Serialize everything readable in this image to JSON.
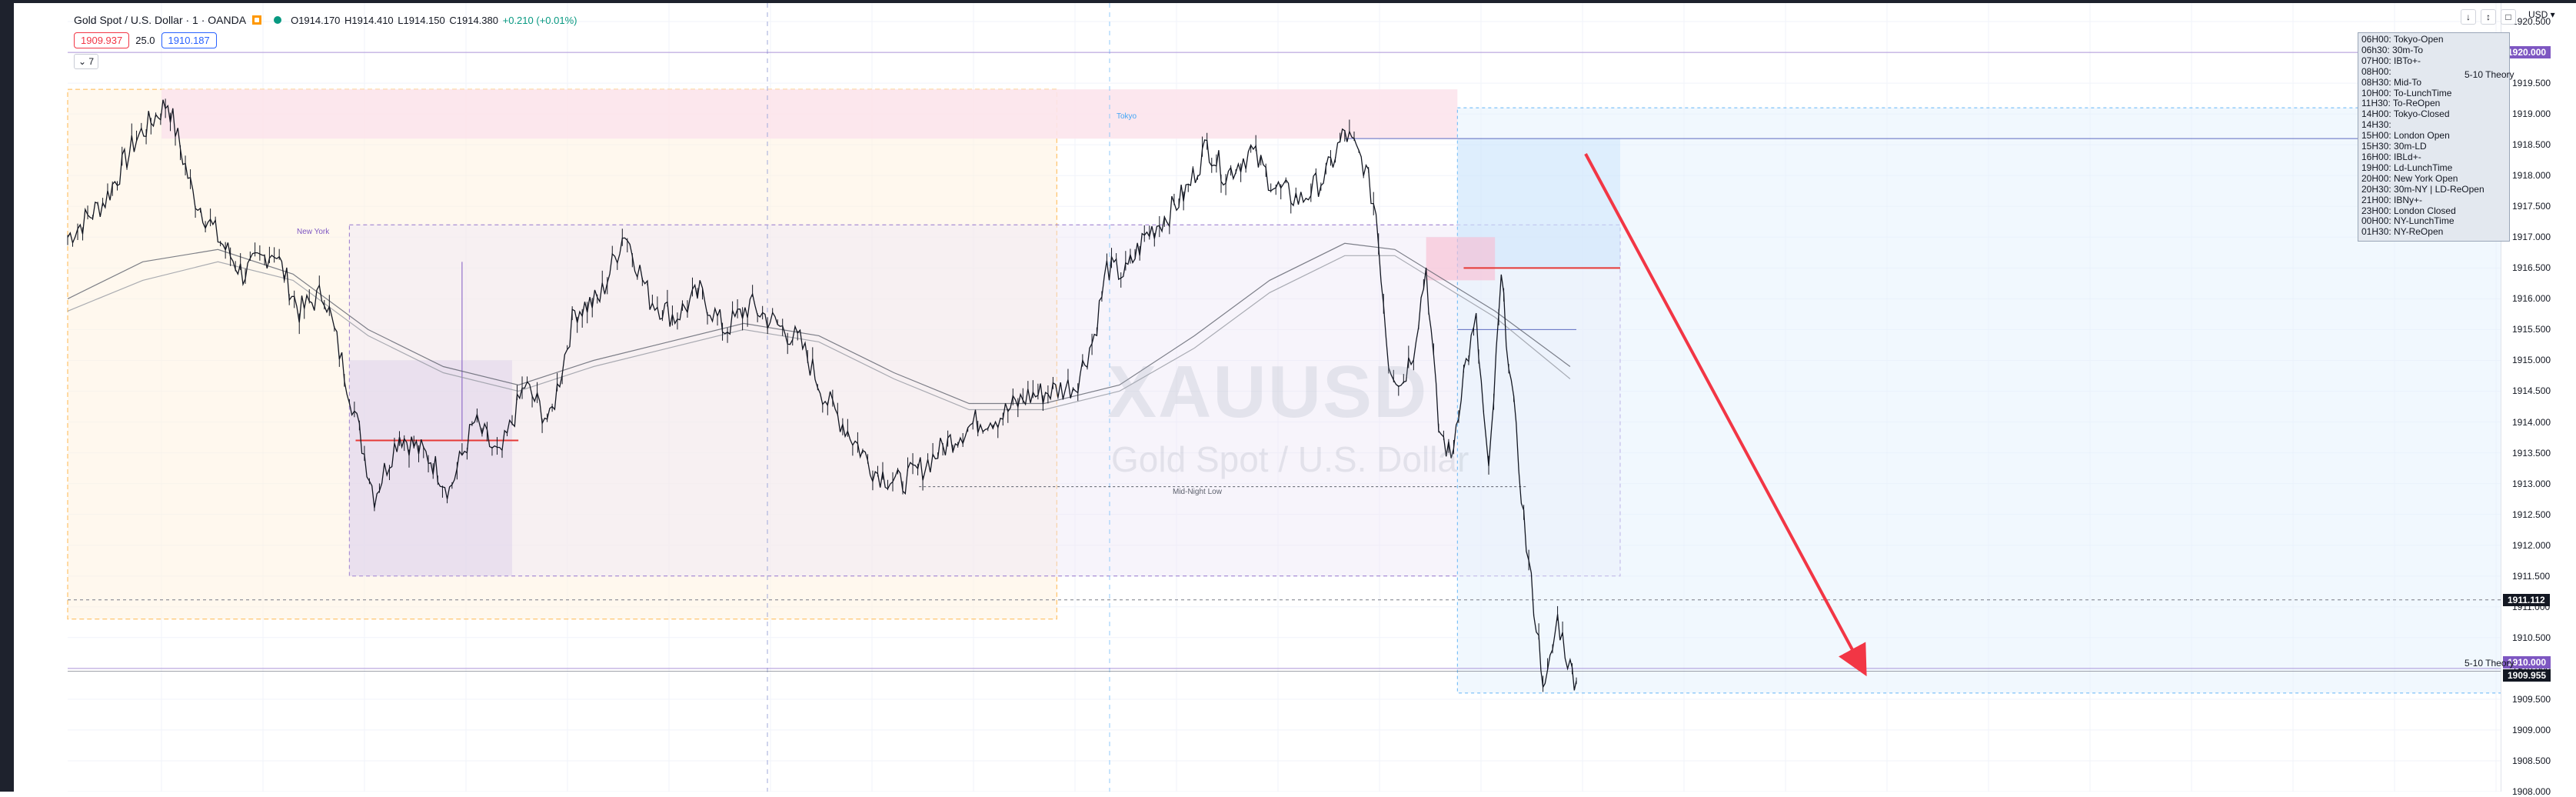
{
  "legend": {
    "symbol": "Gold Spot / U.S. Dollar · 1 · OANDA",
    "open": "O1914.170",
    "high": "H1914.410",
    "low": "L1914.150",
    "close": "C1914.380",
    "change": "+0.210 (+0.01%)"
  },
  "trade": {
    "sell": "1909.937",
    "spread": "25.0",
    "buy": "1910.187"
  },
  "collapse_label": "⌄ 7",
  "watermark": {
    "symbol": "XAUUSD",
    "description": "Gold Spot / U.S. Dollar"
  },
  "axis": {
    "currency": "USD ▾",
    "controls": [
      "↓",
      "↕",
      "□"
    ]
  },
  "session_schedule": "06H00: Tokyo-Open\n06h30: 30m-To\n07H00: IBTo+-\n08H00:\n08H30: Mid-To\n10H00: To-LunchTime\n11H30: To-ReOpen\n14H00: Tokyo-Closed\n14H30:\n15H00: London Open\n15H30: 30m-LD\n16H00: IBLd+-\n19H00: Ld-LunchTime\n20H00: New York Open\n20H30: 30m-NY | LD-ReOpen\n21H00: IBNy+-\n23H00: London Closed\n00H00: NY-LunchTime\n01H30: NY-ReOpen",
  "session_labels": {
    "new_york": "New York",
    "tokyo": "Tokyo",
    "mid_night_low": "Mid-Night Low"
  },
  "theory_label": "5-10 Theory",
  "markers": {
    "cursor_price": "1911.112",
    "theory_high": "1920.000",
    "theory_low": "1910.000",
    "last_price": "1909.955"
  },
  "colors": {
    "up": "#089981",
    "down": "#131722",
    "sell": "#f23645",
    "buy": "#2962ff",
    "theory": "#7e57c2",
    "arrow": "#f23645",
    "tokyo_zone": "#e3f2fd",
    "ny_zone": "#ede7f6",
    "ld_zone": "#fff3e0"
  },
  "chart_data": {
    "type": "candlestick",
    "symbol": "XAUUSD",
    "timeframe": "1",
    "ylim": [
      1908.0,
      1920.8
    ],
    "y_ticks": [
      1908.0,
      1908.5,
      1909.0,
      1909.5,
      1910.0,
      1910.5,
      1911.0,
      1911.5,
      1912.0,
      1912.5,
      1913.0,
      1913.5,
      1914.0,
      1914.5,
      1915.0,
      1915.5,
      1916.0,
      1916.5,
      1917.0,
      1917.5,
      1918.0,
      1918.5,
      1919.0,
      1919.5,
      1920.0,
      1920.5
    ],
    "y_tick_labels": [
      "1908.000",
      "1908.500",
      "1909.000",
      "1909.500",
      "1910.000",
      "1910.500",
      "1911.000",
      "1911.500",
      "1912.000",
      "1912.500",
      "1913.000",
      "1913.500",
      "1914.000",
      "1914.500",
      "1915.000",
      "1915.500",
      "1916.000",
      "1916.500",
      "1917.000",
      "1917.500",
      "1918.000",
      "1918.500",
      "1919.000",
      "1919.500",
      "1920.000",
      "1920.500"
    ],
    "price_path": [
      [
        0,
        1917.0
      ],
      [
        30,
        1917.6
      ],
      [
        55,
        1918.6
      ],
      [
        80,
        1919.2
      ],
      [
        100,
        1917.7
      ],
      [
        120,
        1917.0
      ],
      [
        140,
        1916.4
      ],
      [
        165,
        1916.8
      ],
      [
        185,
        1915.8
      ],
      [
        205,
        1916.1
      ],
      [
        225,
        1914.5
      ],
      [
        245,
        1912.8
      ],
      [
        265,
        1913.8
      ],
      [
        290,
        1913.4
      ],
      [
        305,
        1912.9
      ],
      [
        325,
        1914.0
      ],
      [
        345,
        1913.4
      ],
      [
        365,
        1914.6
      ],
      [
        385,
        1914.0
      ],
      [
        405,
        1915.8
      ],
      [
        425,
        1916.0
      ],
      [
        445,
        1917.1
      ],
      [
        465,
        1916.0
      ],
      [
        485,
        1915.7
      ],
      [
        505,
        1916.1
      ],
      [
        525,
        1915.5
      ],
      [
        545,
        1915.9
      ],
      [
        565,
        1915.6
      ],
      [
        585,
        1915.3
      ],
      [
        605,
        1914.4
      ],
      [
        625,
        1913.8
      ],
      [
        645,
        1913.2
      ],
      [
        665,
        1913.0
      ],
      [
        685,
        1913.3
      ],
      [
        705,
        1913.7
      ],
      [
        725,
        1914.0
      ],
      [
        745,
        1914.1
      ],
      [
        765,
        1914.4
      ],
      [
        785,
        1914.5
      ],
      [
        805,
        1914.6
      ],
      [
        820,
        1915.4
      ],
      [
        830,
        1916.5
      ],
      [
        845,
        1916.4
      ],
      [
        860,
        1917.0
      ],
      [
        880,
        1917.4
      ],
      [
        895,
        1917.8
      ],
      [
        910,
        1918.5
      ],
      [
        925,
        1918.0
      ],
      [
        945,
        1918.4
      ],
      [
        965,
        1917.8
      ],
      [
        985,
        1917.6
      ],
      [
        1005,
        1918.0
      ],
      [
        1020,
        1918.7
      ],
      [
        1035,
        1918.2
      ],
      [
        1045,
        1917.4
      ],
      [
        1055,
        1915.0
      ],
      [
        1065,
        1914.6
      ],
      [
        1075,
        1915.2
      ],
      [
        1085,
        1916.5
      ],
      [
        1095,
        1913.9
      ],
      [
        1105,
        1913.4
      ],
      [
        1115,
        1914.8
      ],
      [
        1125,
        1915.6
      ],
      [
        1135,
        1913.1
      ],
      [
        1145,
        1916.3
      ],
      [
        1155,
        1914.2
      ],
      [
        1165,
        1912.0
      ],
      [
        1175,
        1910.4
      ],
      [
        1180,
        1909.6
      ],
      [
        1190,
        1910.8
      ],
      [
        1200,
        1910.0
      ],
      [
        1205,
        1909.8
      ]
    ],
    "ma_fast": [
      [
        0,
        1916.0
      ],
      [
        60,
        1916.6
      ],
      [
        120,
        1916.8
      ],
      [
        180,
        1916.4
      ],
      [
        240,
        1915.5
      ],
      [
        300,
        1914.9
      ],
      [
        360,
        1914.6
      ],
      [
        420,
        1915.0
      ],
      [
        480,
        1915.3
      ],
      [
        540,
        1915.6
      ],
      [
        600,
        1915.4
      ],
      [
        660,
        1914.8
      ],
      [
        720,
        1914.3
      ],
      [
        780,
        1914.3
      ],
      [
        840,
        1914.6
      ],
      [
        900,
        1915.4
      ],
      [
        960,
        1916.3
      ],
      [
        1020,
        1916.9
      ],
      [
        1060,
        1916.8
      ],
      [
        1100,
        1916.3
      ],
      [
        1140,
        1915.8
      ],
      [
        1200,
        1914.9
      ]
    ],
    "ma_slow": [
      [
        0,
        1915.8
      ],
      [
        60,
        1916.3
      ],
      [
        120,
        1916.6
      ],
      [
        180,
        1916.3
      ],
      [
        240,
        1915.4
      ],
      [
        300,
        1914.8
      ],
      [
        360,
        1914.5
      ],
      [
        420,
        1914.9
      ],
      [
        480,
        1915.2
      ],
      [
        540,
        1915.5
      ],
      [
        600,
        1915.3
      ],
      [
        660,
        1914.7
      ],
      [
        720,
        1914.2
      ],
      [
        780,
        1914.2
      ],
      [
        840,
        1914.5
      ],
      [
        900,
        1915.2
      ],
      [
        960,
        1916.1
      ],
      [
        1020,
        1916.7
      ],
      [
        1060,
        1916.7
      ],
      [
        1100,
        1916.2
      ],
      [
        1140,
        1915.7
      ],
      [
        1200,
        1914.7
      ]
    ],
    "levels": {
      "high_line": 1918.6,
      "tokyo_level": 1915.5,
      "mid_night_low": 1912.95,
      "tokyo_red": 1916.5,
      "ny_red": 1913.7,
      "dashed_level": 1911.112,
      "theory_high": 1920.0,
      "theory_low": 1910.0,
      "last_price": 1909.955
    }
  }
}
